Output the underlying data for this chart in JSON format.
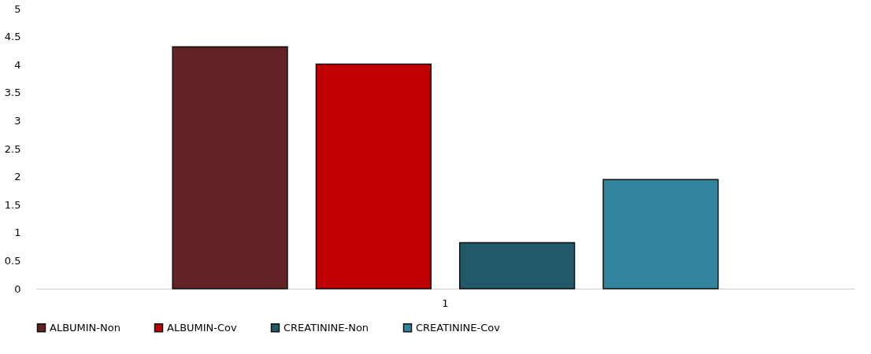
{
  "chart_data": {
    "type": "bar",
    "categories": [
      "1"
    ],
    "series": [
      {
        "name": "ALBUMIN-Non",
        "color": "#622324",
        "values": [
          4.32
        ]
      },
      {
        "name": "ALBUMIN-Cov",
        "color": "#c00000",
        "values": [
          4.01
        ]
      },
      {
        "name": "CREATININE-Non",
        "color": "#215968",
        "values": [
          0.82
        ]
      },
      {
        "name": "CREATININE-Cov",
        "color": "#31849b",
        "values": [
          1.95
        ]
      }
    ],
    "ylim": [
      0,
      5
    ],
    "yticks": [
      0,
      0.5,
      1,
      1.5,
      2,
      2.5,
      3,
      3.5,
      4,
      4.5,
      5
    ],
    "grid": false,
    "legend": "bottom"
  }
}
